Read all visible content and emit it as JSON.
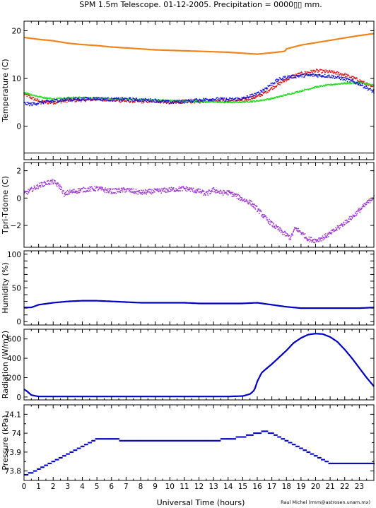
{
  "title": "SPM 1.5m Telescope. 01-12-2005. Precipitation = 0000▯▯ mm.",
  "credit": "Raul Michel (rmm@astrosen.unam.mx)",
  "xlabel": "Universal Time (hours)",
  "colors": {
    "orange": "#f0841c",
    "red": "#e01010",
    "green": "#22dd22",
    "blue": "#1010d8",
    "purple": "#9a32cd",
    "navy": "#0000c0"
  },
  "chart_data": [
    {
      "type": "scatter",
      "ylabel": "Temperature (C)",
      "xlim": [
        0,
        24
      ],
      "ylim": [
        -7,
        22
      ],
      "xticks": [
        0,
        1,
        2,
        3,
        4,
        5,
        6,
        7,
        8,
        9,
        10,
        11,
        12,
        13,
        14,
        15,
        16,
        17,
        18,
        19,
        20,
        21,
        22,
        23
      ],
      "yticks": [
        0,
        10,
        20
      ],
      "xticks_labeled": false,
      "series": [
        {
          "color": "orange",
          "style": "line",
          "x": [
            0,
            1,
            2,
            3,
            4,
            5,
            6,
            7,
            8,
            9,
            10,
            11,
            12,
            13,
            14,
            15,
            16,
            17,
            17.9,
            18,
            18.5,
            19,
            20,
            21,
            22,
            23,
            24
          ],
          "y": [
            18.6,
            18.2,
            17.9,
            17.4,
            17.1,
            16.9,
            16.6,
            16.4,
            16.2,
            16.0,
            15.9,
            15.8,
            15.7,
            15.6,
            15.5,
            15.3,
            15.1,
            15.4,
            15.7,
            16.2,
            16.6,
            17.0,
            17.5,
            18.0,
            18.5,
            19.0,
            19.4
          ]
        },
        {
          "color": "red",
          "style": "points",
          "x": [
            0,
            0.5,
            1,
            1.5,
            2,
            3,
            4,
            5,
            6,
            7,
            8,
            9,
            10,
            11,
            12,
            13,
            14,
            15,
            16,
            16.5,
            17,
            18,
            18.5,
            19,
            19.5,
            20,
            21,
            22,
            23,
            24
          ],
          "y": [
            6.8,
            6.0,
            5.3,
            5.0,
            5.0,
            5.4,
            5.5,
            5.7,
            5.5,
            5.3,
            5.2,
            5.3,
            5.0,
            5.2,
            5.2,
            5.4,
            5.3,
            5.5,
            6.2,
            7.0,
            8.0,
            9.8,
            10.5,
            11.0,
            11.3,
            11.6,
            11.4,
            10.8,
            9.6,
            8.0
          ]
        },
        {
          "color": "green",
          "style": "points",
          "x": [
            0,
            1,
            2,
            3,
            4,
            5,
            6,
            7,
            8,
            9,
            10,
            11,
            12,
            13,
            14,
            15,
            16,
            17,
            18,
            19,
            20,
            21,
            22,
            23,
            24
          ],
          "y": [
            7.1,
            6.2,
            5.7,
            6.0,
            6.0,
            5.9,
            5.8,
            5.7,
            5.6,
            5.5,
            5.4,
            5.3,
            5.2,
            5.1,
            5.0,
            5.1,
            5.3,
            5.8,
            6.6,
            7.4,
            8.2,
            8.7,
            9.0,
            9.1,
            8.6
          ]
        },
        {
          "color": "blue",
          "style": "points",
          "x": [
            0,
            0.5,
            1,
            2,
            3,
            4,
            5,
            6,
            7,
            8,
            9,
            10,
            11,
            12,
            13,
            14,
            15,
            16,
            16.5,
            17,
            17.5,
            18,
            19,
            20,
            21,
            22,
            23,
            24
          ],
          "y": [
            4.8,
            4.6,
            4.9,
            5.3,
            5.6,
            5.7,
            5.8,
            5.6,
            5.7,
            5.5,
            5.4,
            5.0,
            5.2,
            5.5,
            5.7,
            5.6,
            5.8,
            6.8,
            7.8,
            8.9,
            9.8,
            10.3,
            10.6,
            10.7,
            10.5,
            9.9,
            8.9,
            7.2
          ]
        }
      ]
    },
    {
      "type": "scatter",
      "ylabel": "Tpri-Tdome (C)",
      "xlim": [
        0,
        24
      ],
      "ylim": [
        -3.6,
        2.6
      ],
      "xticks": [
        0,
        1,
        2,
        3,
        4,
        5,
        6,
        7,
        8,
        9,
        10,
        11,
        12,
        13,
        14,
        15,
        16,
        17,
        18,
        19,
        20,
        21,
        22,
        23
      ],
      "yticks": [
        -2,
        0,
        2
      ],
      "yticklabels": [
        "−2",
        "0",
        "2"
      ],
      "xticks_labeled": false,
      "series": [
        {
          "color": "purple",
          "style": "points",
          "x": [
            0,
            0.5,
            1,
            1.5,
            2,
            2.5,
            2.8,
            3,
            4,
            5,
            6,
            7,
            8,
            9,
            10,
            11,
            12,
            12.5,
            13,
            13.5,
            14,
            14.5,
            15,
            15.5,
            16,
            16.5,
            17,
            17.5,
            18,
            18.3,
            18.6,
            19,
            19.5,
            20,
            20.5,
            21,
            21.5,
            22,
            22.5,
            23,
            23.5,
            24
          ],
          "y": [
            0.3,
            0.6,
            0.9,
            1.1,
            1.2,
            0.8,
            0.2,
            0.4,
            0.6,
            0.7,
            0.5,
            0.6,
            0.4,
            0.5,
            0.6,
            0.7,
            0.5,
            0.3,
            0.6,
            0.4,
            0.4,
            0.2,
            -0.1,
            -0.3,
            -0.8,
            -1.4,
            -1.9,
            -2.3,
            -2.7,
            -2.9,
            -2.2,
            -2.5,
            -3.0,
            -3.1,
            -2.9,
            -2.6,
            -2.2,
            -1.8,
            -1.4,
            -0.9,
            -0.4,
            0.1
          ]
        }
      ]
    },
    {
      "type": "line",
      "ylabel": "Humidity (%)",
      "xlim": [
        0,
        24
      ],
      "ylim": [
        -5,
        105
      ],
      "xticks": [
        0,
        1,
        2,
        3,
        4,
        5,
        6,
        7,
        8,
        9,
        10,
        11,
        12,
        13,
        14,
        15,
        16,
        17,
        18,
        19,
        20,
        21,
        22,
        23
      ],
      "yticks": [
        0,
        10,
        20,
        30,
        40,
        50,
        60,
        70,
        80,
        90,
        100
      ],
      "yticklabels": [
        "0",
        "",
        "",
        "",
        "",
        "50",
        "",
        "",
        "",
        "",
        "100"
      ],
      "xticks_labeled": false,
      "series": [
        {
          "color": "navy",
          "x": [
            0,
            0.5,
            1,
            2,
            3,
            4,
            5,
            6,
            7,
            8,
            9,
            10,
            11,
            12,
            13,
            14,
            15,
            16,
            17,
            18,
            19,
            20,
            21,
            22,
            23,
            24
          ],
          "y": [
            21,
            21,
            25,
            28,
            30,
            31,
            31,
            30,
            29,
            28,
            28,
            28,
            28,
            27,
            27,
            27,
            27,
            28,
            25,
            22,
            20,
            20,
            20,
            20,
            20,
            21
          ]
        }
      ]
    },
    {
      "type": "line",
      "ylabel": "Radiation (W/m2)",
      "xlim": [
        0,
        24
      ],
      "ylim": [
        -30,
        700
      ],
      "xticks": [
        0,
        1,
        2,
        3,
        4,
        5,
        6,
        7,
        8,
        9,
        10,
        11,
        12,
        13,
        14,
        15,
        16,
        17,
        18,
        19,
        20,
        21,
        22,
        23
      ],
      "yticks": [
        0,
        200,
        400,
        600
      ],
      "xticks_labeled": false,
      "series": [
        {
          "color": "navy",
          "x": [
            0,
            0.2,
            0.5,
            1,
            2,
            4,
            6,
            8,
            10,
            12,
            14,
            15,
            15.5,
            15.8,
            16,
            16.3,
            16.6,
            17,
            17.5,
            18,
            18.5,
            19,
            19.5,
            20,
            20.5,
            21,
            21.5,
            22,
            22.5,
            23,
            23.5,
            24
          ],
          "y": [
            80,
            60,
            20,
            5,
            5,
            5,
            5,
            5,
            5,
            5,
            5,
            10,
            30,
            70,
            160,
            250,
            290,
            340,
            410,
            480,
            560,
            610,
            645,
            655,
            650,
            620,
            570,
            490,
            400,
            300,
            200,
            110
          ]
        }
      ]
    },
    {
      "type": "scatter",
      "ylabel": "Pressure (kPa)",
      "xlim": [
        0,
        24
      ],
      "ylim": [
        73.75,
        74.15
      ],
      "xticks": [
        0,
        1,
        2,
        3,
        4,
        5,
        6,
        7,
        8,
        9,
        10,
        11,
        12,
        13,
        14,
        15,
        16,
        17,
        18,
        19,
        20,
        21,
        22,
        23
      ],
      "xticklabels": [
        "0",
        "1",
        "2",
        "3",
        "4",
        "5",
        "6",
        "7",
        "8",
        "9",
        "10",
        "11",
        "12",
        "13",
        "14",
        "15",
        "16",
        "17",
        "18",
        "19",
        "20",
        "21",
        "22",
        "23"
      ],
      "yticks": [
        73.8,
        73.9,
        74.0,
        74.1
      ],
      "yticklabels": [
        "73.8",
        "73.9",
        "74",
        "74.1"
      ],
      "yticks_minor": [
        73.75,
        73.85,
        73.95,
        74.05
      ],
      "xticks_labeled": true,
      "series": [
        {
          "color": "navy",
          "style": "steps",
          "x": [
            0,
            0.5,
            1,
            1.5,
            2,
            2.5,
            3,
            3.5,
            4,
            4.5,
            5,
            6,
            7,
            8,
            9,
            10,
            11,
            12,
            13,
            14,
            15,
            16,
            16.5,
            17,
            17.5,
            18,
            18.5,
            19,
            19.5,
            20,
            20.5,
            21,
            22,
            23,
            24
          ],
          "y": [
            73.78,
            73.79,
            73.81,
            73.83,
            73.85,
            73.87,
            73.89,
            73.91,
            73.93,
            73.95,
            73.97,
            73.97,
            73.96,
            73.96,
            73.96,
            73.96,
            73.96,
            73.96,
            73.96,
            73.97,
            73.98,
            74.0,
            74.01,
            74.0,
            73.98,
            73.96,
            73.94,
            73.92,
            73.9,
            73.88,
            73.86,
            73.84,
            73.84,
            73.84,
            73.84
          ]
        }
      ]
    }
  ]
}
